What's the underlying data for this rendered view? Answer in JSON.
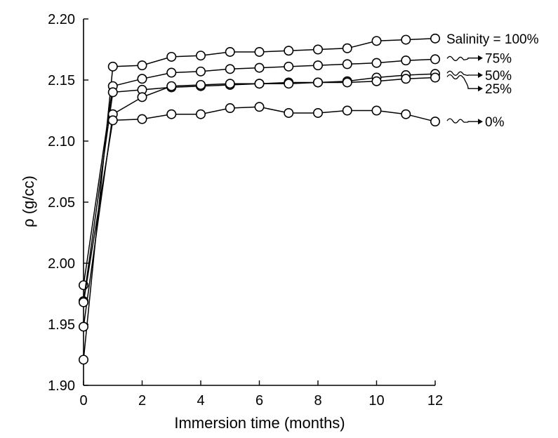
{
  "chart_data": {
    "type": "line",
    "title": "",
    "xlabel": "Immersion time (months)",
    "ylabel": "ρ (g/cc)",
    "xlim": [
      0,
      12
    ],
    "ylim": [
      1.9,
      2.2
    ],
    "xticks": [
      "0",
      "2",
      "4",
      "6",
      "8",
      "10",
      "12"
    ],
    "yticks": [
      "1.90",
      "1.95",
      "2.00",
      "2.05",
      "2.10",
      "2.15",
      "2.20"
    ],
    "grid": false,
    "legend": "inline labels at right end of each series",
    "x": [
      0,
      1,
      2,
      3,
      4,
      5,
      6,
      7,
      8,
      9,
      10,
      11,
      12
    ],
    "series": [
      {
        "name": "Salinity = 100%",
        "values": [
          1.921,
          2.161,
          2.162,
          2.169,
          2.17,
          2.173,
          2.173,
          2.174,
          2.175,
          2.176,
          2.182,
          2.183,
          2.184
        ]
      },
      {
        "name": "75%",
        "values": [
          1.982,
          2.145,
          2.151,
          2.156,
          2.157,
          2.159,
          2.16,
          2.161,
          2.162,
          2.163,
          2.164,
          2.166,
          2.167
        ]
      },
      {
        "name": "50%",
        "values": [
          1.969,
          2.14,
          2.142,
          2.144,
          2.145,
          2.146,
          2.147,
          2.148,
          2.148,
          2.149,
          2.152,
          2.154,
          2.155
        ]
      },
      {
        "name": "25%",
        "values": [
          1.948,
          2.122,
          2.136,
          2.145,
          2.146,
          2.147,
          2.147,
          2.147,
          2.148,
          2.148,
          2.149,
          2.151,
          2.152
        ]
      },
      {
        "name": "0%",
        "values": [
          1.968,
          2.117,
          2.118,
          2.122,
          2.122,
          2.127,
          2.128,
          2.123,
          2.123,
          2.125,
          2.125,
          2.122,
          2.116
        ]
      }
    ]
  }
}
